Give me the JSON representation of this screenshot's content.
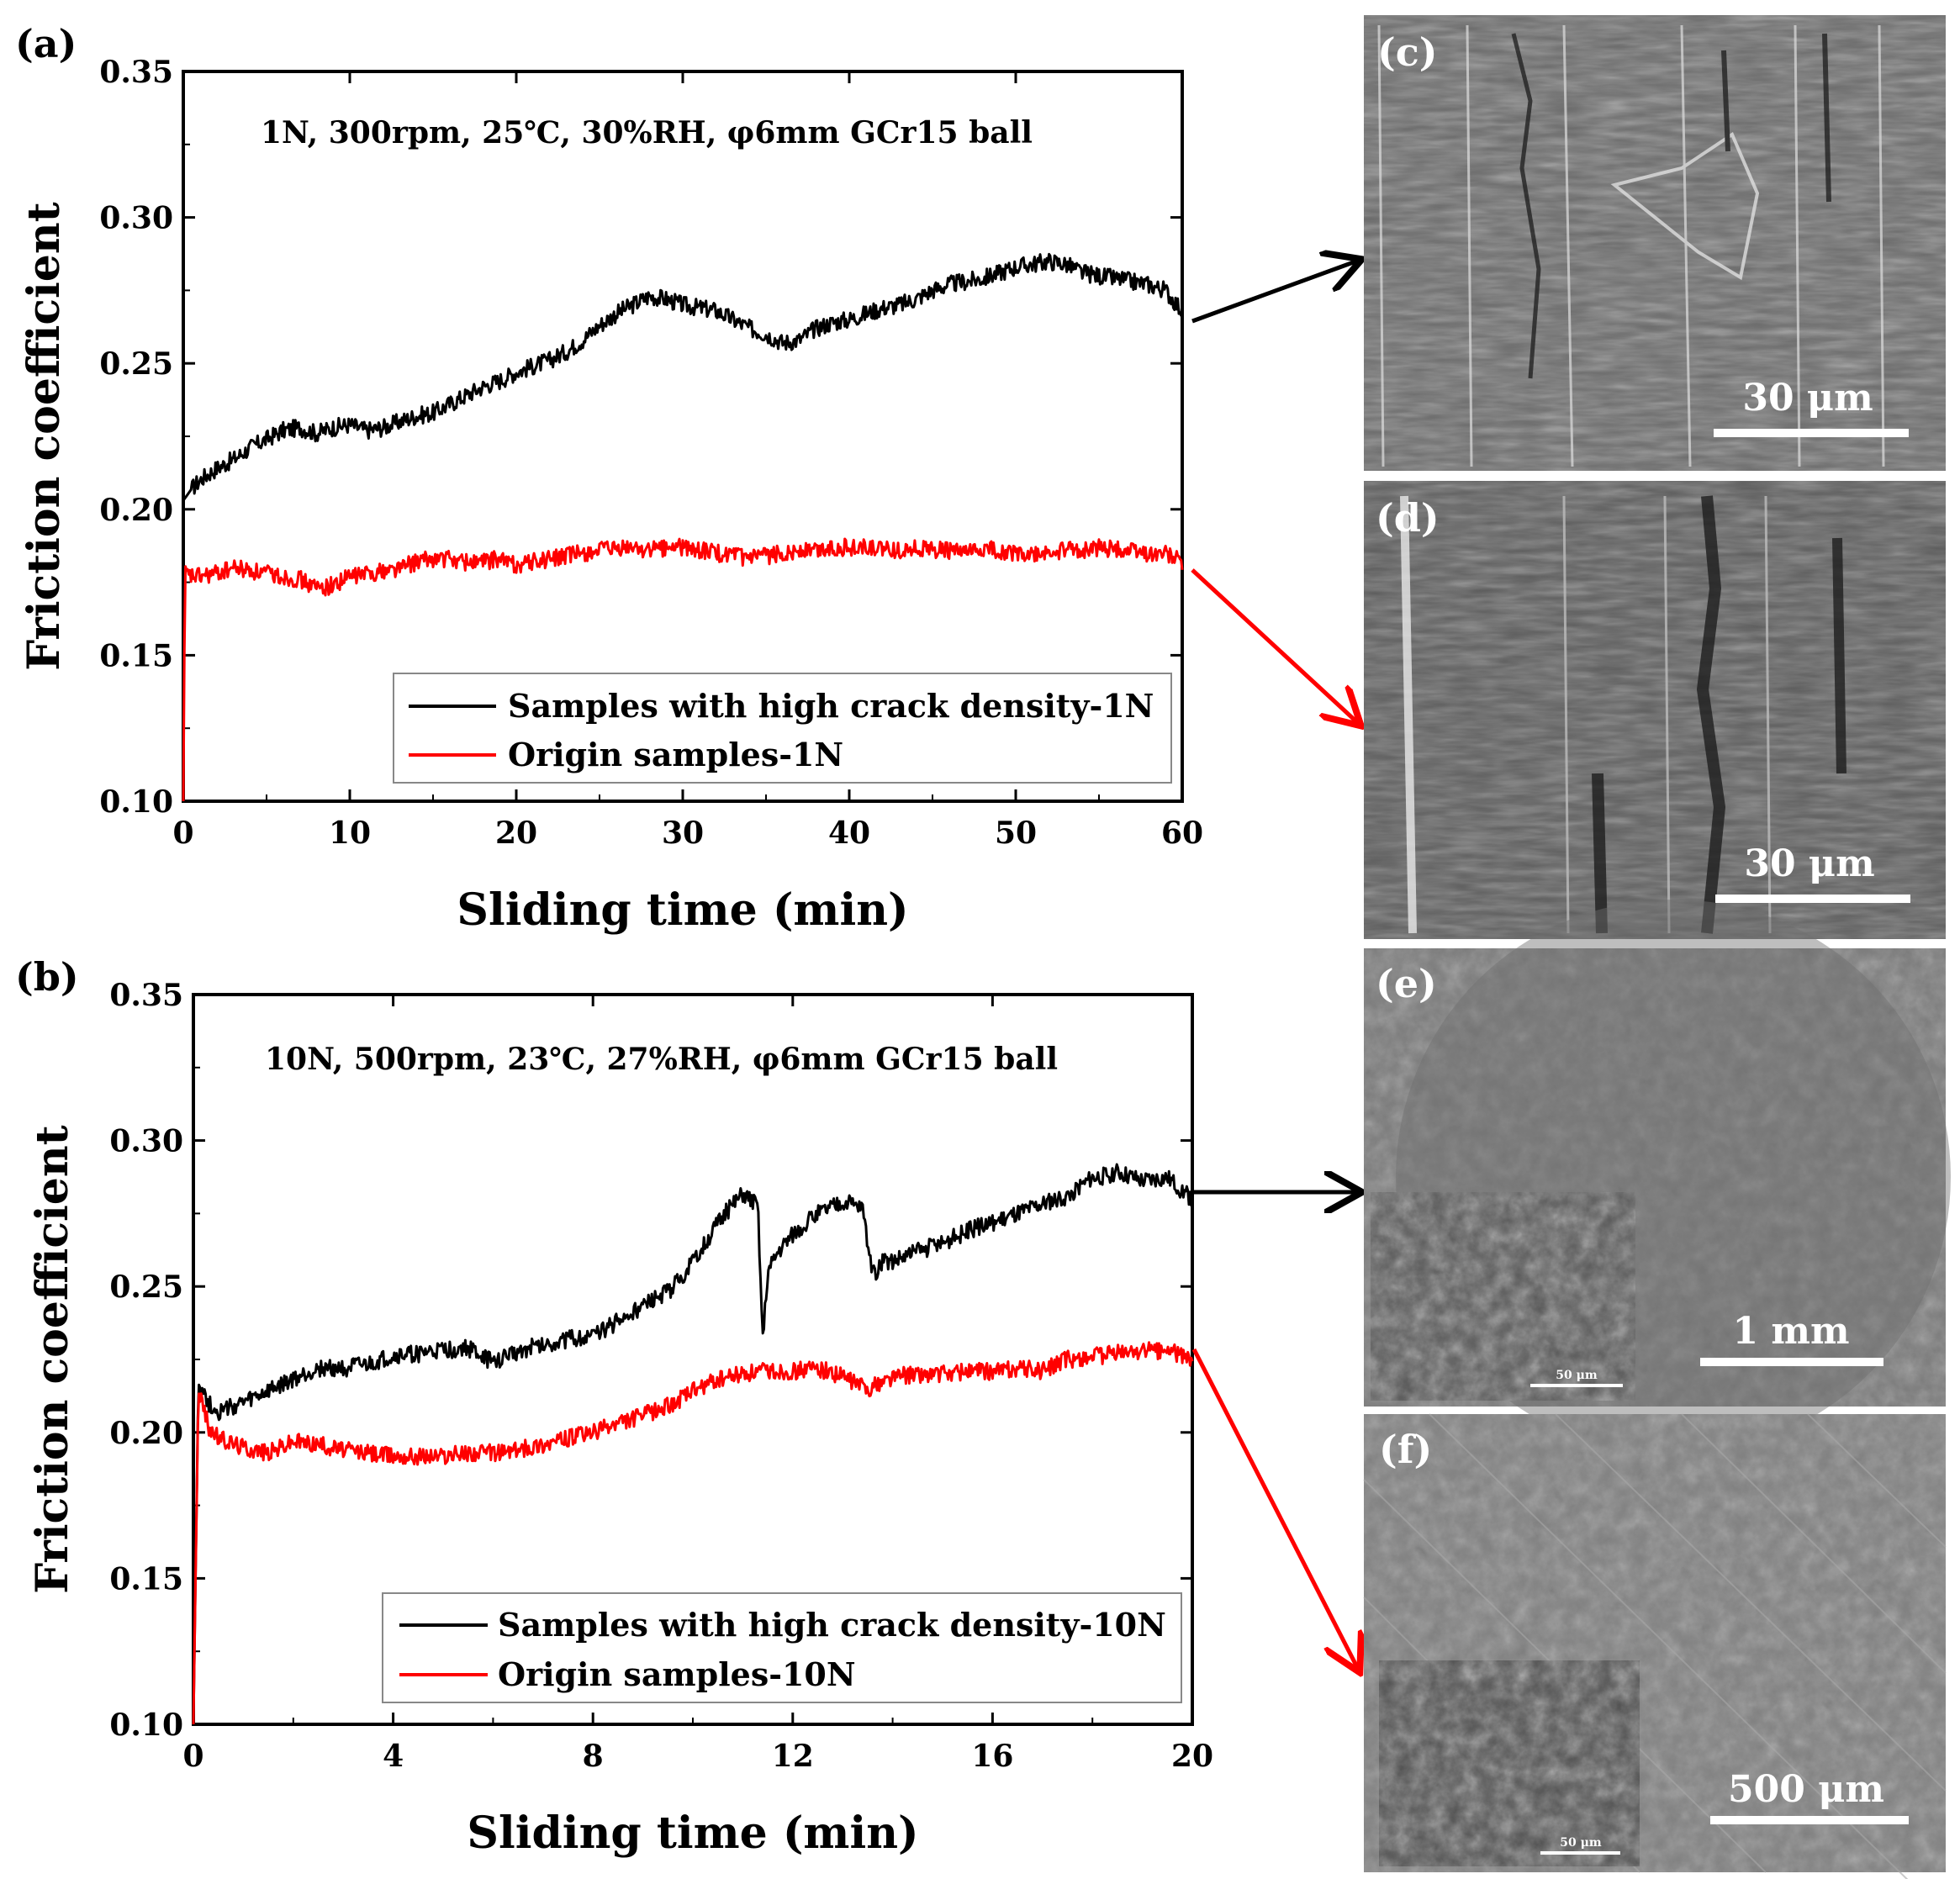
{
  "chart_data": [
    {
      "panel_label": "(a)",
      "type": "line",
      "annotation": "1N, 300rpm, 25℃, 30%RH, φ6mm GCr15 ball",
      "xlabel": "Sliding time (min)",
      "ylabel": "Friction coefficient",
      "xlim": [
        0,
        60
      ],
      "ylim": [
        0.1,
        0.35
      ],
      "xticks": [
        "0",
        "10",
        "20",
        "30",
        "40",
        "50",
        "60"
      ],
      "yticks": [
        "0.10",
        "0.15",
        "0.20",
        "0.25",
        "0.30",
        "0.35"
      ],
      "legend_position": "bottom-right",
      "grid": false,
      "series": [
        {
          "name": "Samples with high crack density-1N",
          "color": "#000000",
          "x": [
            0,
            0.5,
            1,
            2,
            3,
            4,
            5,
            6,
            7,
            8,
            9,
            10,
            11,
            12,
            13,
            14,
            15,
            16,
            17,
            18,
            19,
            20,
            21,
            22,
            23,
            24,
            25,
            26,
            27,
            28,
            29,
            30,
            31,
            32,
            33,
            34,
            35,
            36,
            37,
            38,
            39,
            40,
            41,
            42,
            43,
            44,
            45,
            46,
            47,
            48,
            49,
            50,
            51,
            52,
            53,
            54,
            55,
            56,
            57,
            58,
            59,
            60
          ],
          "y": [
            0.203,
            0.207,
            0.21,
            0.214,
            0.217,
            0.221,
            0.224,
            0.227,
            0.228,
            0.226,
            0.228,
            0.229,
            0.227,
            0.228,
            0.23,
            0.232,
            0.233,
            0.236,
            0.239,
            0.242,
            0.244,
            0.247,
            0.249,
            0.251,
            0.254,
            0.258,
            0.263,
            0.267,
            0.27,
            0.273,
            0.272,
            0.27,
            0.269,
            0.268,
            0.265,
            0.262,
            0.26,
            0.257,
            0.258,
            0.262,
            0.264,
            0.265,
            0.267,
            0.269,
            0.27,
            0.272,
            0.275,
            0.277,
            0.278,
            0.279,
            0.281,
            0.283,
            0.284,
            0.285,
            0.284,
            0.281,
            0.28,
            0.279,
            0.278,
            0.277,
            0.275,
            0.268
          ]
        },
        {
          "name": "Origin samples-1N",
          "color": "#ff0000",
          "x": [
            0,
            0.1,
            0.3,
            1,
            2,
            3,
            4,
            5,
            6,
            7,
            8,
            9,
            10,
            11,
            12,
            13,
            14,
            15,
            16,
            17,
            18,
            19,
            20,
            21,
            22,
            23,
            24,
            25,
            26,
            27,
            28,
            29,
            30,
            31,
            32,
            33,
            34,
            35,
            36,
            37,
            38,
            39,
            40,
            41,
            42,
            43,
            44,
            45,
            46,
            47,
            48,
            49,
            50,
            51,
            52,
            53,
            54,
            55,
            56,
            57,
            58,
            59,
            60
          ],
          "y": [
            0.1,
            0.178,
            0.177,
            0.177,
            0.178,
            0.18,
            0.179,
            0.178,
            0.177,
            0.176,
            0.173,
            0.174,
            0.177,
            0.178,
            0.179,
            0.18,
            0.182,
            0.183,
            0.183,
            0.182,
            0.182,
            0.183,
            0.181,
            0.182,
            0.183,
            0.184,
            0.185,
            0.186,
            0.186,
            0.187,
            0.186,
            0.187,
            0.187,
            0.186,
            0.185,
            0.184,
            0.183,
            0.184,
            0.185,
            0.186,
            0.186,
            0.187,
            0.187,
            0.187,
            0.186,
            0.186,
            0.187,
            0.186,
            0.186,
            0.185,
            0.186,
            0.186,
            0.185,
            0.184,
            0.185,
            0.186,
            0.186,
            0.187,
            0.186,
            0.186,
            0.185,
            0.185,
            0.182
          ]
        }
      ]
    },
    {
      "panel_label": "(b)",
      "type": "line",
      "annotation": "10N, 500rpm, 23℃, 27%RH, φ6mm GCr15 ball",
      "xlabel": "Sliding time (min)",
      "ylabel": "Friction coefficient",
      "xlim": [
        0,
        20
      ],
      "ylim": [
        0.1,
        0.35
      ],
      "xticks": [
        "0",
        "4",
        "8",
        "12",
        "16",
        "20"
      ],
      "yticks": [
        "0.10",
        "0.15",
        "0.20",
        "0.25",
        "0.30",
        "0.35"
      ],
      "legend_position": "bottom-right",
      "grid": false,
      "series": [
        {
          "name": "Samples with high crack density-10N",
          "color": "#000000",
          "x": [
            0,
            0.1,
            0.3,
            0.5,
            1,
            1.5,
            2,
            2.5,
            3,
            3.5,
            4,
            4.5,
            5,
            5.5,
            6,
            6.5,
            7,
            7.5,
            8,
            8.5,
            9,
            9.5,
            10,
            10.5,
            11,
            11.3,
            11.4,
            11.5,
            11.7,
            12,
            12.5,
            13,
            13.4,
            13.6,
            13.8,
            14,
            14.5,
            15,
            15.5,
            16,
            16.5,
            17,
            17.5,
            18,
            18.5,
            19,
            19.5,
            20
          ],
          "y": [
            0.1,
            0.218,
            0.21,
            0.207,
            0.21,
            0.214,
            0.218,
            0.222,
            0.222,
            0.223,
            0.226,
            0.227,
            0.228,
            0.229,
            0.224,
            0.228,
            0.23,
            0.232,
            0.233,
            0.238,
            0.243,
            0.248,
            0.258,
            0.272,
            0.282,
            0.278,
            0.232,
            0.255,
            0.262,
            0.268,
            0.275,
            0.279,
            0.277,
            0.254,
            0.258,
            0.259,
            0.262,
            0.265,
            0.269,
            0.272,
            0.275,
            0.278,
            0.281,
            0.287,
            0.289,
            0.286,
            0.287,
            0.28
          ]
        },
        {
          "name": "Origin samples-10N",
          "color": "#ff0000",
          "x": [
            0,
            0.1,
            0.3,
            0.5,
            1,
            1.5,
            2,
            2.5,
            3,
            3.5,
            4,
            4.5,
            5,
            5.5,
            6,
            6.5,
            7,
            7.5,
            8,
            8.5,
            9,
            9.5,
            10,
            10.5,
            11,
            11.5,
            12,
            12.5,
            13,
            13.5,
            14,
            14.5,
            15,
            15.5,
            16,
            16.5,
            17,
            17.5,
            18,
            18.5,
            19,
            19.5,
            20
          ],
          "y": [
            0.1,
            0.215,
            0.202,
            0.198,
            0.195,
            0.193,
            0.197,
            0.196,
            0.194,
            0.193,
            0.192,
            0.192,
            0.192,
            0.193,
            0.193,
            0.194,
            0.196,
            0.198,
            0.2,
            0.203,
            0.206,
            0.209,
            0.214,
            0.218,
            0.22,
            0.221,
            0.221,
            0.222,
            0.219,
            0.215,
            0.219,
            0.22,
            0.22,
            0.221,
            0.221,
            0.222,
            0.221,
            0.225,
            0.226,
            0.227,
            0.228,
            0.228,
            0.225
          ]
        }
      ]
    }
  ],
  "sem_images": [
    {
      "label": "(c)",
      "scale_bar": "30 μm"
    },
    {
      "label": "(d)",
      "scale_bar": "30 μm"
    },
    {
      "label": "(e)",
      "scale_bar": "1 mm",
      "inset_scale_bar": "50 μm"
    },
    {
      "label": "(f)",
      "scale_bar": "500 μm",
      "inset_scale_bar": "50 μm"
    }
  ],
  "colors": {
    "crack_series": "#000000",
    "origin_series": "#ff0000",
    "sem_background": "#6b6b6b"
  }
}
